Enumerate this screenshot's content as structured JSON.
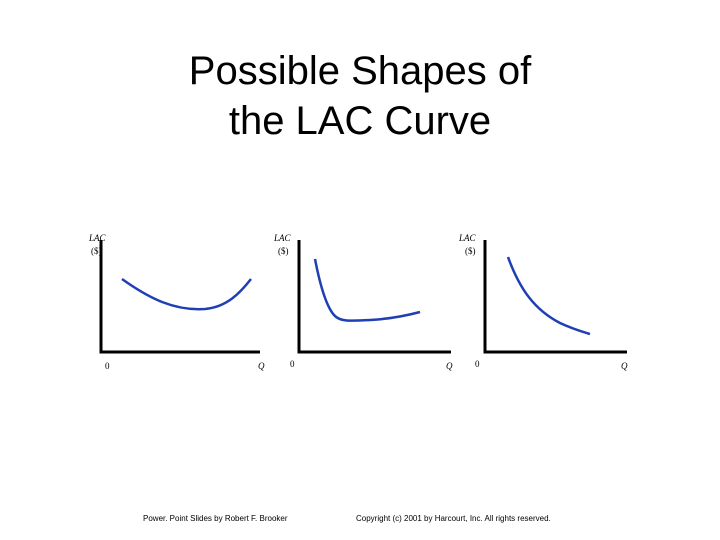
{
  "slide": {
    "title_line1": "Possible Shapes of",
    "title_line2": "the LAC Curve"
  },
  "panels": [
    {
      "y_label": "LAC",
      "y_unit": "($)",
      "origin": "0",
      "x_label": "Q",
      "shape": "U-shaped"
    },
    {
      "y_label": "LAC",
      "y_unit": "($)",
      "origin": "0",
      "x_label": "Q",
      "shape": "L-shaped, flattening"
    },
    {
      "y_label": "LAC",
      "y_unit": "($)",
      "origin": "0",
      "x_label": "Q",
      "shape": "continuously declining"
    }
  ],
  "colors": {
    "curve": "#1f3fb5",
    "axis": "#000000"
  },
  "footer": {
    "left": "Power. Point Slides by Robert F. Brooker",
    "right": "Copyright (c) 2001 by Harcourt, Inc. All rights reserved."
  }
}
